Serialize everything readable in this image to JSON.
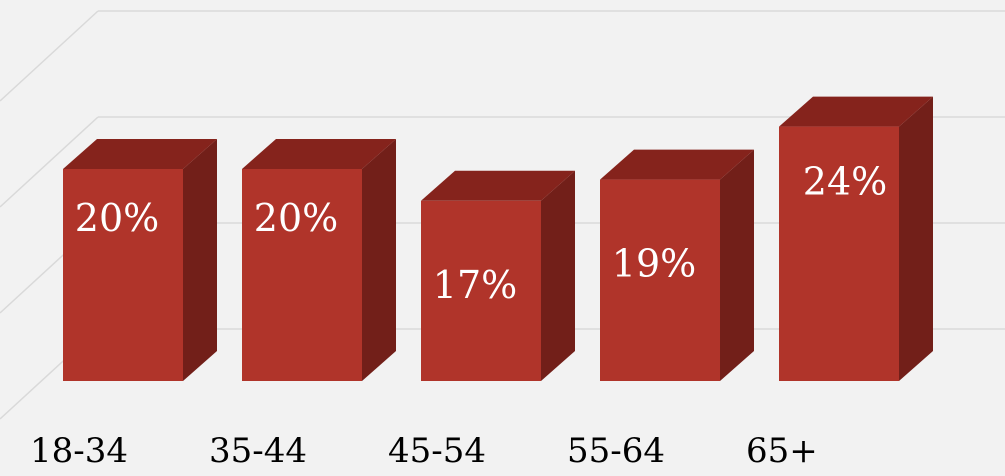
{
  "chart_data": {
    "type": "bar",
    "style": "3d-column",
    "categories": [
      "18-34",
      "35-44",
      "45-54",
      "55-64",
      "65+"
    ],
    "values": [
      20,
      20,
      17,
      19,
      24
    ],
    "data_labels": [
      "20%",
      "20%",
      "17%",
      "19%",
      "24%"
    ],
    "title": "",
    "xlabel": "",
    "ylabel": "",
    "ylim": [
      0,
      30
    ],
    "grid": true,
    "legend": "none",
    "colors": {
      "front": "#b0342a",
      "side": "#721f19",
      "top": "#85231c",
      "background": "#f2f2f2",
      "grid": "#d9d9d9",
      "label_on_bar": "#ffffff",
      "category_text": "#000000"
    }
  }
}
